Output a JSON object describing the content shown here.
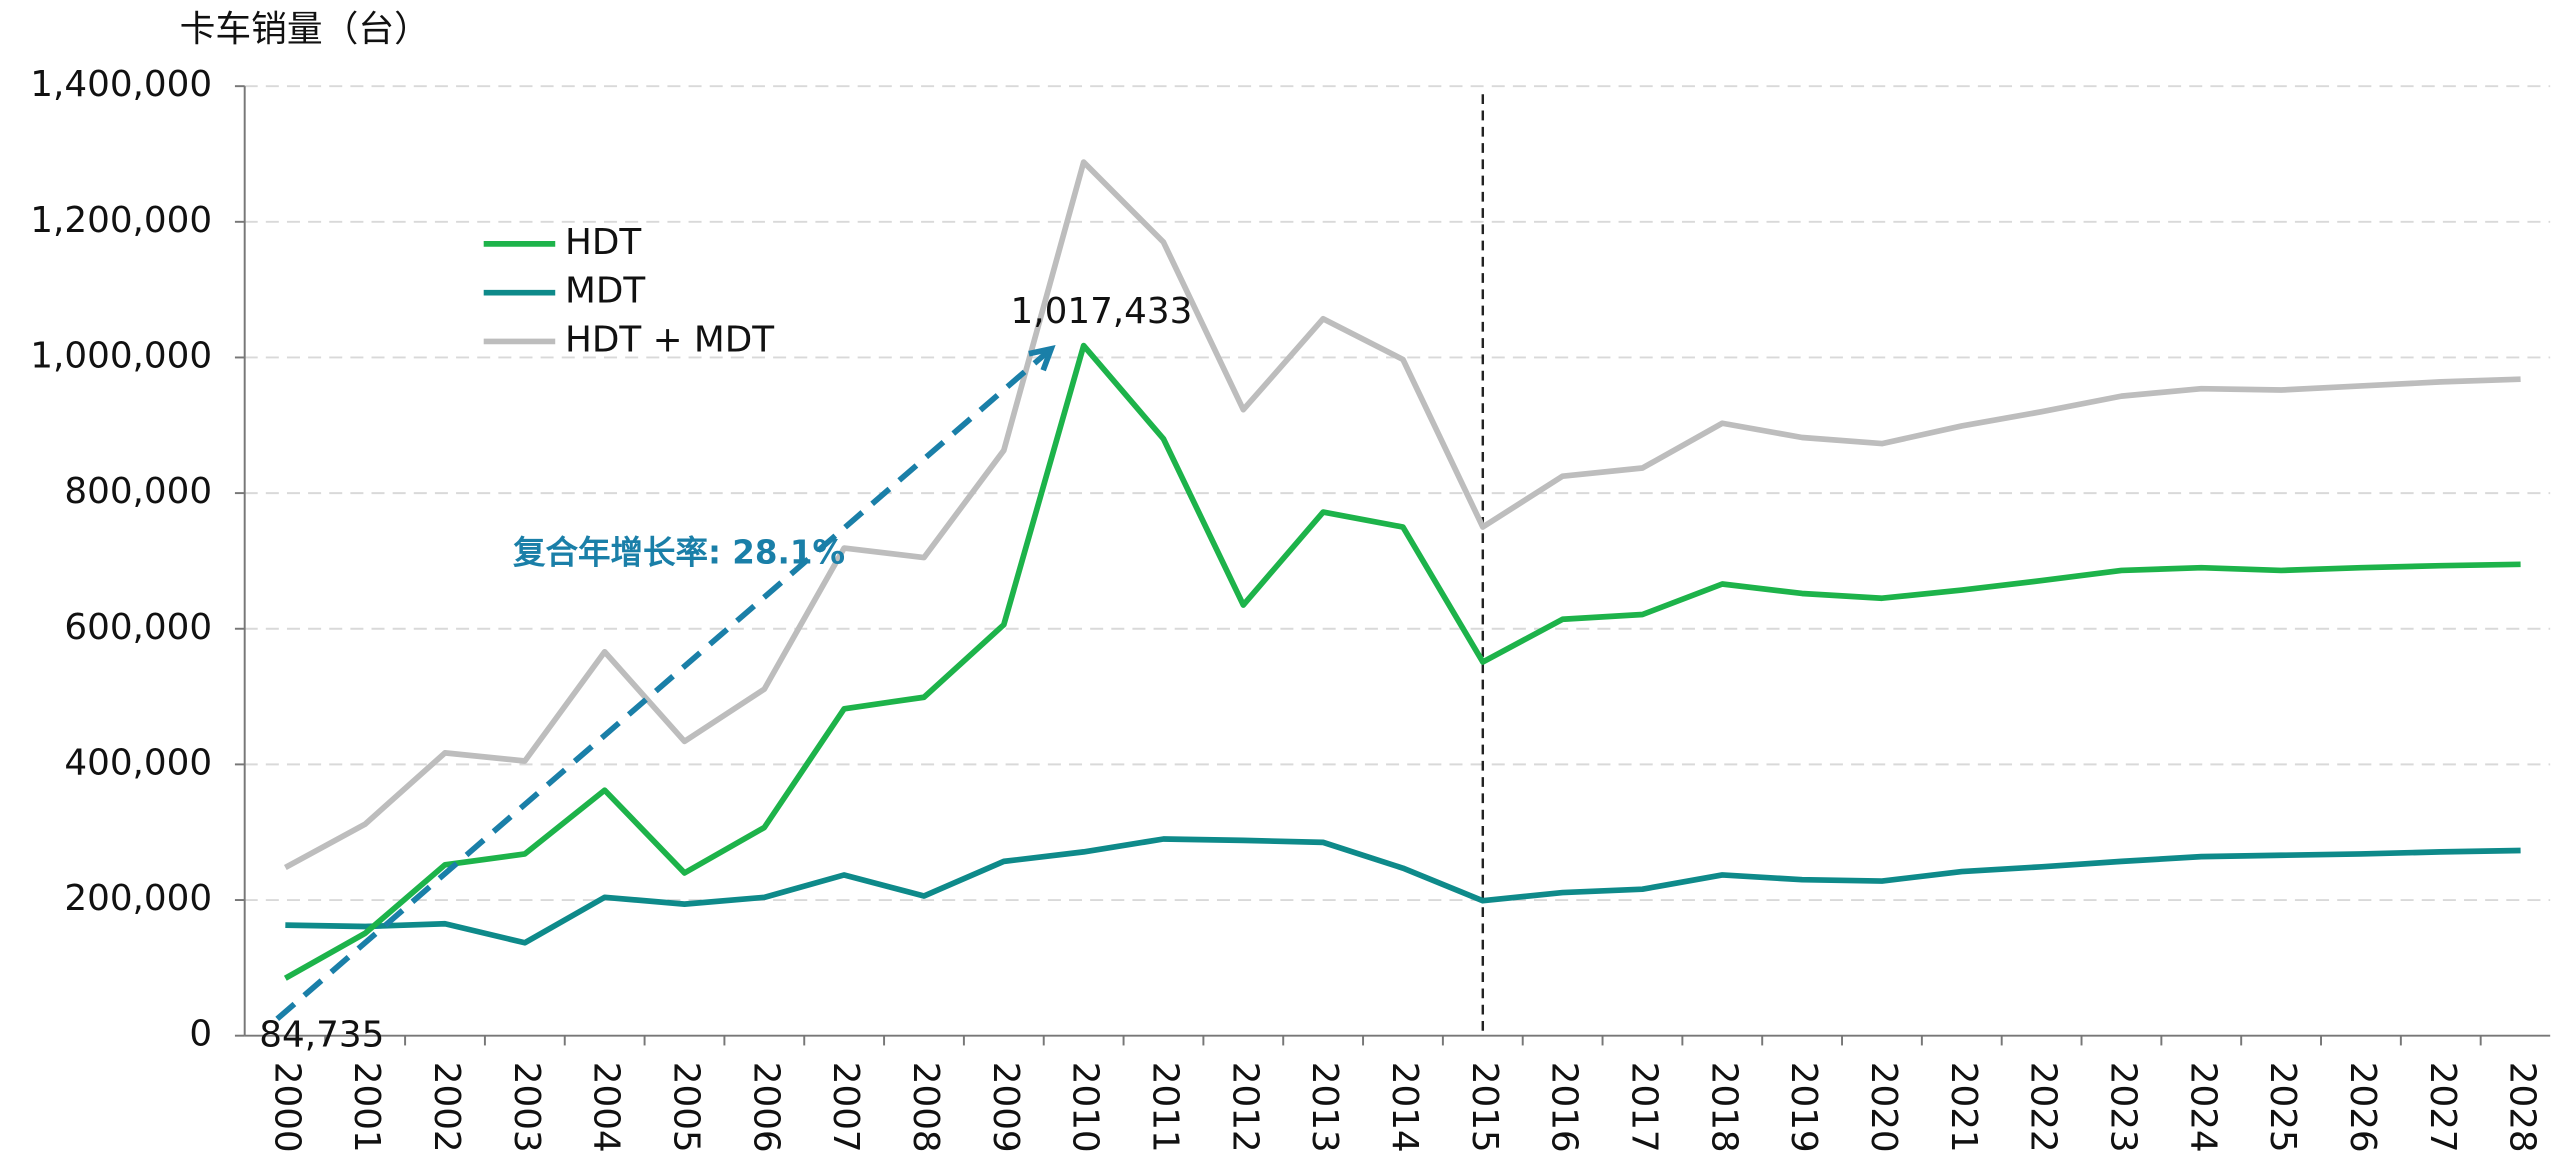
{
  "chart_data": {
    "type": "line",
    "y_axis_label": "卡车销量（台）",
    "categories": [
      "2000",
      "2001",
      "2002",
      "2003",
      "2004",
      "2005",
      "2006",
      "2007",
      "2008",
      "2009",
      "2010",
      "2011",
      "2012",
      "2013",
      "2014",
      "2015",
      "2016",
      "2017",
      "2018",
      "2019",
      "2020",
      "2021",
      "2022",
      "2023",
      "2024",
      "2025",
      "2026",
      "2027",
      "2028"
    ],
    "series": [
      {
        "name": "HDT",
        "color": "#1db34a",
        "values": [
          84735,
          151000,
          252000,
          268000,
          362000,
          240000,
          307000,
          482000,
          499000,
          606000,
          1017433,
          880000,
          635000,
          772000,
          750000,
          551000,
          614000,
          621000,
          666000,
          652000,
          645000,
          657000,
          671000,
          686000,
          690000,
          686000,
          690000,
          693000,
          695000
        ],
        "value_labels": [
          "84,735",
          null,
          null,
          null,
          null,
          null,
          null,
          null,
          null,
          null,
          "1,017,433",
          null,
          null,
          null,
          null,
          null,
          null,
          null,
          null,
          null,
          null,
          null,
          null,
          null,
          null,
          null,
          null,
          null,
          null
        ]
      },
      {
        "name": "MDT",
        "color": "#0e8a8a",
        "values": [
          163000,
          161000,
          165000,
          137000,
          204000,
          194000,
          204000,
          237000,
          206000,
          257000,
          271000,
          290000,
          288000,
          285000,
          247000,
          199000,
          211000,
          216000,
          237000,
          230000,
          228000,
          242000,
          249000,
          257000,
          264000,
          266000,
          268000,
          271000,
          273000
        ]
      },
      {
        "name": "HDT + MDT",
        "color": "#bdbdbd",
        "values": [
          248000,
          312000,
          417000,
          405000,
          566000,
          434000,
          511000,
          719000,
          705000,
          863000,
          1288000,
          1170000,
          923000,
          1057000,
          997000,
          750000,
          825000,
          837000,
          903000,
          882000,
          873000,
          899000,
          920000,
          943000,
          954000,
          952000,
          958000,
          964000,
          968000
        ]
      }
    ],
    "ylim": [
      0,
      1400000
    ],
    "yticks": [
      0,
      {
        "value": 200000,
        "label": "200,000"
      },
      {
        "value": 400000,
        "label": "400,000"
      },
      {
        "value": 600000,
        "label": "600,000"
      },
      {
        "value": 800000,
        "label": "800,000"
      },
      {
        "value": 1000000,
        "label": "1,000,000"
      },
      {
        "value": 1200000,
        "label": "1,200,000"
      },
      {
        "value": 1400000,
        "label": "1,400,000"
      }
    ],
    "grid": true,
    "legend": "upper left",
    "divider_at": "2015",
    "annotation": {
      "text": "复合年增长率: 28.1%",
      "color": "#1a7fa8"
    }
  }
}
